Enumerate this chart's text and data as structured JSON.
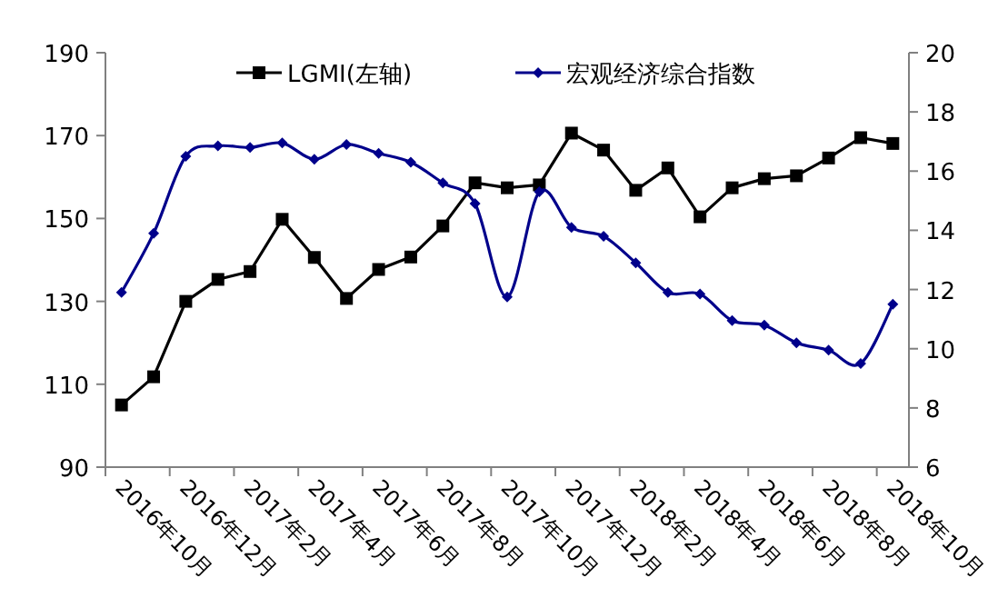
{
  "chart_data": {
    "type": "line",
    "categories": [
      "2016年10月",
      null,
      "2016年12月",
      null,
      "2017年2月",
      null,
      "2017年4月",
      null,
      "2017年6月",
      null,
      "2017年8月",
      null,
      "2017年10月",
      null,
      "2017年12月",
      null,
      "2018年2月",
      null,
      "2018年4月",
      null,
      "2018年6月",
      null,
      "2018年8月",
      null,
      "2018年10月"
    ],
    "series": [
      {
        "name": "LGMI(左轴)",
        "color": "#000000",
        "marker": "square",
        "values": [
          105,
          111.8,
          130,
          135.3,
          137.2,
          149.8,
          140.6,
          130.7,
          137.7,
          140.7,
          148.2,
          158.6,
          157.4,
          158.1,
          170.6,
          166.5,
          156.8,
          162.2,
          150.4,
          157.4,
          159.6,
          160.3,
          164.6,
          169.5,
          168.1
        ]
      },
      {
        "name": "宏观经济综合指数",
        "color": "#00008b",
        "marker": "diamond",
        "axis": "y2",
        "values": [
          11.9,
          13.9,
          16.5,
          16.85,
          16.8,
          16.95,
          16.4,
          16.9,
          16.6,
          16.3,
          15.6,
          14.9,
          11.75,
          15.3,
          14.1,
          13.8,
          12.9,
          11.9,
          11.85,
          10.95,
          10.8,
          10.2,
          9.95,
          9.5,
          11.5
        ]
      }
    ],
    "ylim": [
      90,
      190
    ],
    "yticks": [
      90,
      110,
      130,
      150,
      170,
      190
    ],
    "y2lim": [
      6,
      20
    ],
    "y2ticks": [
      6,
      8,
      10,
      12,
      14,
      16,
      18,
      20
    ],
    "grid": false,
    "legend": "top"
  }
}
